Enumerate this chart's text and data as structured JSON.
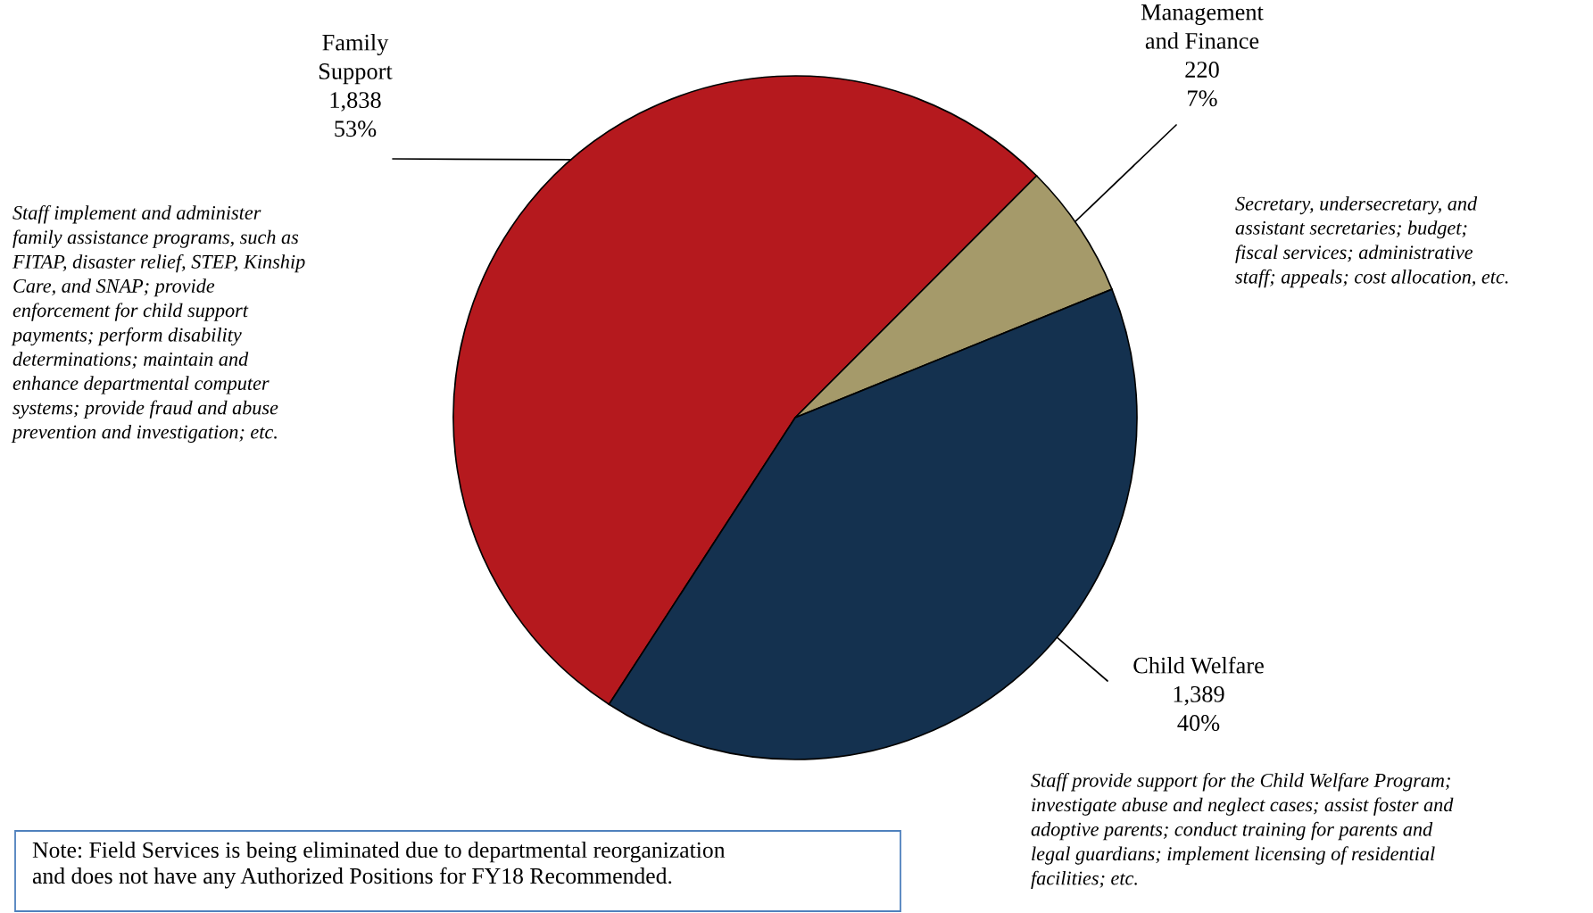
{
  "chart_data": {
    "type": "pie",
    "categories": [
      "Family\nSupport",
      "Management\nand Finance",
      "Child Welfare"
    ],
    "values": [
      1838,
      220,
      1389
    ],
    "colors": [
      "#b5191e",
      "#a59a6a",
      "#14314f"
    ],
    "value_labels": [
      "1,838\n53%",
      "220\n7%",
      "1,389\n40%"
    ],
    "annotations": [
      "Staff implement and administer\nfamily assistance programs, such as\nFITAP, disaster relief, STEP, Kinship\nCare, and SNAP; provide\nenforcement for child support\npayments; perform disability\ndeterminations; maintain and\nenhance departmental computer\nsystems; provide fraud and abuse\nprevention and investigation; etc.",
      "Secretary, undersecretary, and\nassistant secretaries; budget;\nfiscal services; administrative\nstaff; appeals; cost allocation, etc.",
      "Staff provide support for the Child Welfare Program;\ninvestigate abuse and neglect cases; assist foster and\nadoptive parents; conduct training for parents and\nlegal guardians; implement licensing of residential\nfacilities; etc.",
      "Note: Field Services is being eliminated due to departmental reorganization\nand does not have any Authorized Positions for FY18 Recommended."
    ],
    "legend": false
  }
}
